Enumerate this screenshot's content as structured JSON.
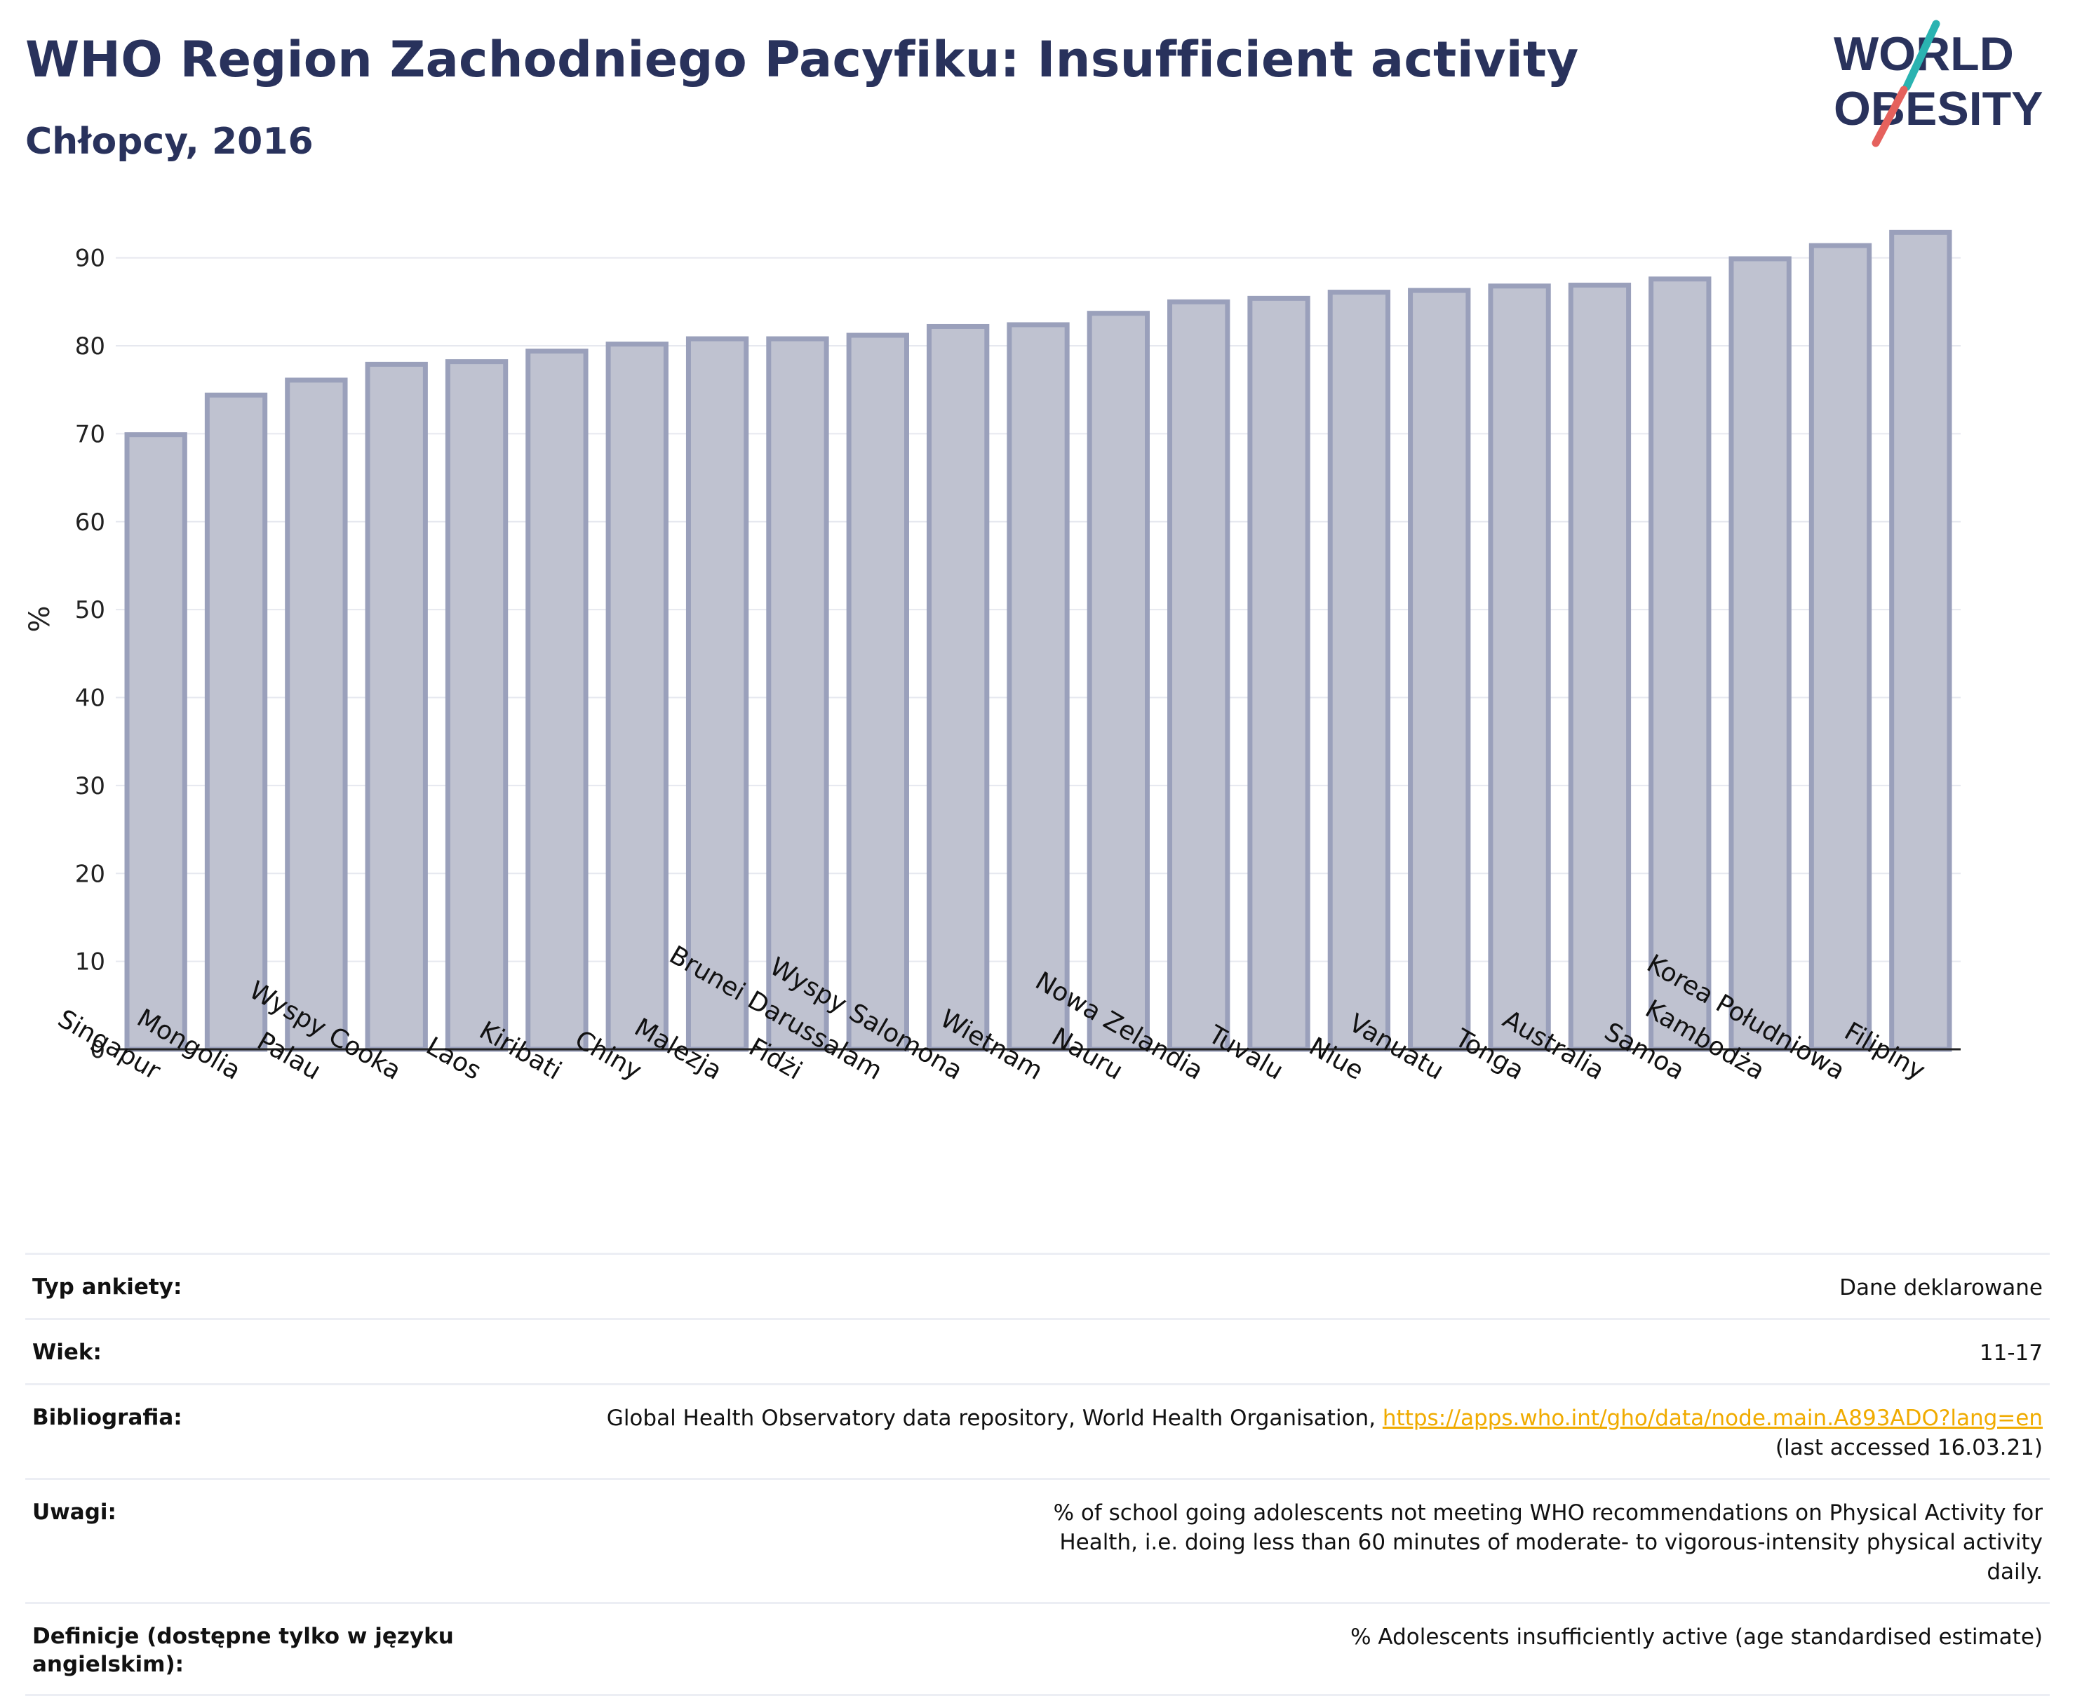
{
  "header": {
    "title": "WHO Region Zachodniego Pacyfiku: Insufficient activity",
    "subtitle": "Chłopcy, 2016"
  },
  "logo": {
    "line1": "WORLD",
    "line2": "OBESITY",
    "accent_teal": "#2ab3b1",
    "accent_red": "#e5615d",
    "text_color": "#29325c"
  },
  "chart_data": {
    "type": "bar",
    "ylabel": "%",
    "xlabel": "",
    "ylim": [
      0,
      95
    ],
    "yticks": [
      0,
      10,
      20,
      30,
      40,
      50,
      60,
      70,
      80,
      90
    ],
    "grid": true,
    "bar_color": "#bfc2d0",
    "bar_edge_color": "#9aa0bb",
    "categories": [
      "Singapur",
      "Mongolia",
      "Palau",
      "Wyspy Cooka",
      "Laos",
      "Kiribati",
      "Chiny",
      "Malezja",
      "Fidżi",
      "Brunei Darussalam",
      "Wyspy Salomona",
      "Wietnam",
      "Nauru",
      "Nowa Zelandia",
      "Tuvalu",
      "Niue",
      "Vanuatu",
      "Tonga",
      "Australia",
      "Samoa",
      "Kambodża",
      "Korea Południowa",
      "Filipiny"
    ],
    "values": [
      69.9,
      74.4,
      76.1,
      77.9,
      78.2,
      79.4,
      80.2,
      80.8,
      80.8,
      81.2,
      82.2,
      82.4,
      83.7,
      85.0,
      85.4,
      86.1,
      86.3,
      86.8,
      86.9,
      87.6,
      89.9,
      91.4,
      92.9
    ]
  },
  "info": {
    "rows": [
      {
        "label": "Typ ankiety:",
        "value": "Dane deklarowane"
      },
      {
        "label": "Wiek:",
        "value": "11-17"
      },
      {
        "label": "Bibliografia:",
        "value": "Global Health Observatory data repository, World Health Organisation,",
        "link": "https://apps.who.int/gho/data/node.main.A893ADO?lang=en",
        "value2": "(last accessed 16.03.21)"
      },
      {
        "label": "Uwagi:",
        "value": "% of school going adolescents not meeting WHO recommendations on Physical Activity for Health, i.e. doing less than 60 minutes of moderate- to vigorous-intensity physical activity daily."
      },
      {
        "label": "Definicje (dostępne tylko w języku angielskim):",
        "value": "% Adolescents insufficiently active (age standardised estimate)"
      }
    ]
  }
}
